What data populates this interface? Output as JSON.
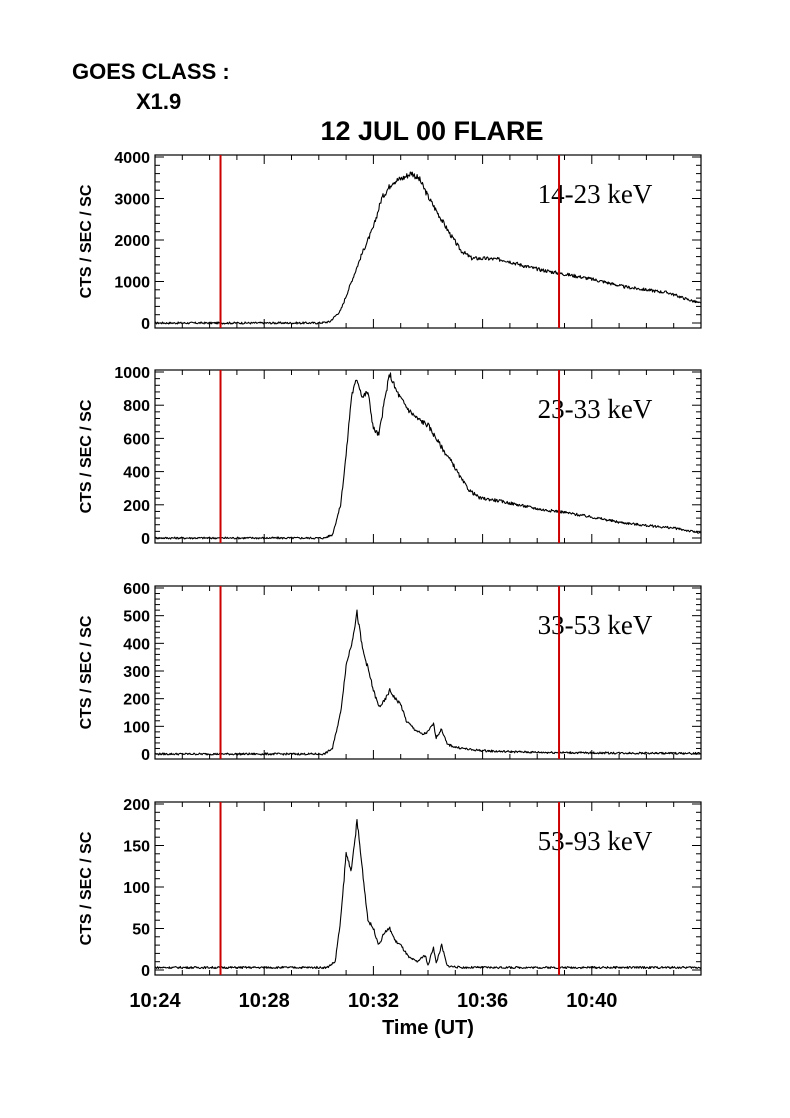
{
  "header": {
    "goes_label": "GOES CLASS :",
    "goes_class": "X1.9",
    "title": "12 JUL 00 FLARE"
  },
  "chart_data": {
    "type": "line",
    "title": "12 JUL 00 FLARE",
    "xlabel": "Time (UT)",
    "ylabel": "CTS / SEC / SC",
    "x_unit": "minutes (UT)",
    "xlim": [
      "10:24",
      "10:44"
    ],
    "xticks": [
      "10:24",
      "10:28",
      "10:32",
      "10:36",
      "10:40"
    ],
    "vertical_markers": [
      "10:26.4",
      "10:38.8"
    ],
    "marker_color": "#cc0000",
    "line_color": "#000000",
    "panels": [
      {
        "band": "14-23 keV",
        "ylim": [
          0,
          4000
        ],
        "yticks": [
          "0",
          "1000",
          "2000",
          "3000",
          "4000"
        ],
        "points": [
          [
            "10:24.0",
            0
          ],
          [
            "10:30.0",
            0
          ],
          [
            "10:30.4",
            30
          ],
          [
            "10:30.8",
            300
          ],
          [
            "10:31.2",
            1000
          ],
          [
            "10:31.6",
            1700
          ],
          [
            "10:32.0",
            2300
          ],
          [
            "10:32.3",
            3000
          ],
          [
            "10:32.7",
            3400
          ],
          [
            "10:33.1",
            3500
          ],
          [
            "10:33.4",
            3620
          ],
          [
            "10:33.7",
            3450
          ],
          [
            "10:34.0",
            3050
          ],
          [
            "10:34.4",
            2600
          ],
          [
            "10:34.8",
            2150
          ],
          [
            "10:35.2",
            1750
          ],
          [
            "10:35.6",
            1560
          ],
          [
            "10:36.2",
            1550
          ],
          [
            "10:36.8",
            1520
          ],
          [
            "10:37.4",
            1400
          ],
          [
            "10:38.0",
            1300
          ],
          [
            "10:38.8",
            1200
          ],
          [
            "10:39.6",
            1110
          ],
          [
            "10:40.4",
            1000
          ],
          [
            "10:41.2",
            870
          ],
          [
            "10:42.0",
            800
          ],
          [
            "10:42.8",
            730
          ],
          [
            "10:43.5",
            570
          ],
          [
            "10:44.0",
            470
          ]
        ]
      },
      {
        "band": "23-33 keV",
        "ylim": [
          0,
          1000
        ],
        "yticks": [
          "0",
          "200",
          "400",
          "600",
          "800",
          "1000"
        ],
        "points": [
          [
            "10:24.0",
            0
          ],
          [
            "10:30.2",
            0
          ],
          [
            "10:30.5",
            20
          ],
          [
            "10:30.8",
            200
          ],
          [
            "10:31.0",
            500
          ],
          [
            "10:31.2",
            860
          ],
          [
            "10:31.4",
            960
          ],
          [
            "10:31.6",
            850
          ],
          [
            "10:31.8",
            880
          ],
          [
            "10:32.0",
            660
          ],
          [
            "10:32.2",
            620
          ],
          [
            "10:32.4",
            820
          ],
          [
            "10:32.6",
            990
          ],
          [
            "10:32.8",
            900
          ],
          [
            "10:33.0",
            840
          ],
          [
            "10:33.3",
            770
          ],
          [
            "10:33.6",
            720
          ],
          [
            "10:34.0",
            680
          ],
          [
            "10:34.3",
            600
          ],
          [
            "10:34.6",
            520
          ],
          [
            "10:34.9",
            450
          ],
          [
            "10:35.2",
            360
          ],
          [
            "10:35.5",
            290
          ],
          [
            "10:35.9",
            240
          ],
          [
            "10:36.4",
            230
          ],
          [
            "10:37.0",
            210
          ],
          [
            "10:37.6",
            190
          ],
          [
            "10:38.2",
            170
          ],
          [
            "10:38.8",
            160
          ],
          [
            "10:39.5",
            140
          ],
          [
            "10:40.2",
            120
          ],
          [
            "10:41.0",
            95
          ],
          [
            "10:42.0",
            75
          ],
          [
            "10:43.0",
            60
          ],
          [
            "10:44.0",
            30
          ]
        ]
      },
      {
        "band": "33-53 keV",
        "ylim": [
          0,
          600
        ],
        "yticks": [
          "0",
          "100",
          "200",
          "300",
          "400",
          "500",
          "600"
        ],
        "points": [
          [
            "10:24.0",
            0
          ],
          [
            "10:30.2",
            0
          ],
          [
            "10:30.5",
            20
          ],
          [
            "10:30.8",
            150
          ],
          [
            "10:31.0",
            320
          ],
          [
            "10:31.2",
            400
          ],
          [
            "10:31.4",
            510
          ],
          [
            "10:31.6",
            380
          ],
          [
            "10:31.8",
            310
          ],
          [
            "10:32.0",
            230
          ],
          [
            "10:32.2",
            170
          ],
          [
            "10:32.4",
            190
          ],
          [
            "10:32.6",
            230
          ],
          [
            "10:32.8",
            200
          ],
          [
            "10:33.0",
            180
          ],
          [
            "10:33.2",
            120
          ],
          [
            "10:33.5",
            90
          ],
          [
            "10:33.8",
            70
          ],
          [
            "10:34.0",
            80
          ],
          [
            "10:34.2",
            110
          ],
          [
            "10:34.3",
            60
          ],
          [
            "10:34.5",
            90
          ],
          [
            "10:34.7",
            35
          ],
          [
            "10:35.0",
            25
          ],
          [
            "10:35.6",
            15
          ],
          [
            "10:36.4",
            10
          ],
          [
            "10:38.0",
            6
          ],
          [
            "10:40.0",
            4
          ],
          [
            "10:44.0",
            2
          ]
        ]
      },
      {
        "band": "53-93 keV",
        "ylim": [
          0,
          200
        ],
        "yticks": [
          "0",
          "50",
          "100",
          "150",
          "200"
        ],
        "points": [
          [
            "10:24.0",
            3
          ],
          [
            "10:30.3",
            3
          ],
          [
            "10:30.6",
            10
          ],
          [
            "10:30.8",
            60
          ],
          [
            "10:31.0",
            140
          ],
          [
            "10:31.2",
            120
          ],
          [
            "10:31.4",
            180
          ],
          [
            "10:31.6",
            120
          ],
          [
            "10:31.8",
            60
          ],
          [
            "10:32.0",
            50
          ],
          [
            "10:32.2",
            30
          ],
          [
            "10:32.4",
            45
          ],
          [
            "10:32.6",
            50
          ],
          [
            "10:32.8",
            35
          ],
          [
            "10:33.0",
            30
          ],
          [
            "10:33.3",
            15
          ],
          [
            "10:33.6",
            10
          ],
          [
            "10:33.9",
            18
          ],
          [
            "10:34.0",
            5
          ],
          [
            "10:34.2",
            28
          ],
          [
            "10:34.3",
            8
          ],
          [
            "10:34.5",
            30
          ],
          [
            "10:34.7",
            5
          ],
          [
            "10:35.2",
            3
          ],
          [
            "10:44.0",
            3
          ]
        ]
      }
    ]
  }
}
